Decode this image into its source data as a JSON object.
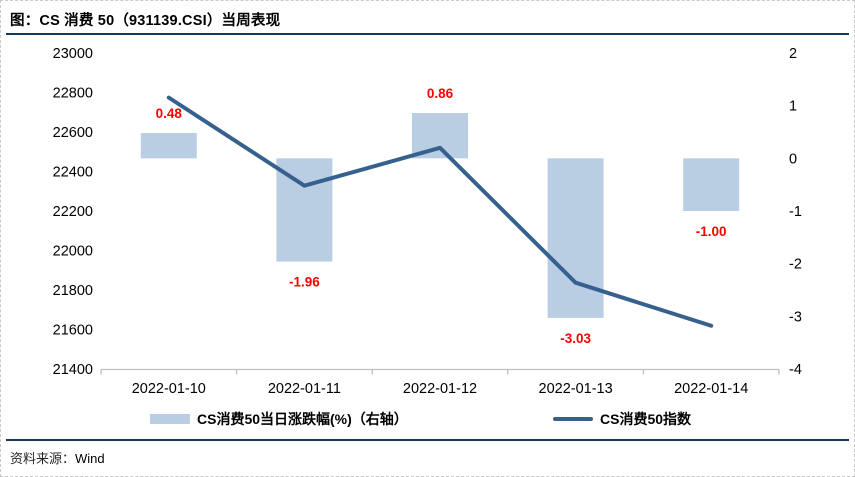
{
  "page": {
    "title": "图：CS 消费 50（931139.CSI）当周表现",
    "source_label": "资料来源：",
    "source_value": "Wind",
    "accent_rule_color": "#17365D"
  },
  "chart_data": {
    "type": "bar+line combo",
    "title": "CS 消费 50（931139.CSI）当周表现",
    "categories": [
      "2022-01-10",
      "2022-01-11",
      "2022-01-12",
      "2022-01-13",
      "2022-01-14"
    ],
    "series": [
      {
        "name": "CS消费50当日涨跌幅(%)（右轴）",
        "type": "bar",
        "axis": "right",
        "values": [
          0.48,
          -1.96,
          0.86,
          -3.03,
          -1.0
        ],
        "data_labels": [
          "0.48",
          "-1.96",
          "0.86",
          "-3.03",
          "-1.00"
        ],
        "color": "#B9CDE3",
        "data_label_color": "#FF0000"
      },
      {
        "name": "CS消费50指数",
        "type": "line",
        "axis": "left",
        "values": [
          22774,
          22328,
          22520,
          21837,
          21619
        ],
        "color": "#36618F"
      }
    ],
    "left_axis": {
      "min": 21400,
      "max": 23000,
      "step": 200,
      "ticks": [
        23000,
        22800,
        22600,
        22400,
        22200,
        22000,
        21800,
        21600,
        21400
      ]
    },
    "right_axis": {
      "min": -4,
      "max": 2,
      "step": 1,
      "ticks": [
        2,
        1,
        0,
        -1,
        -2,
        -3,
        -4
      ]
    },
    "grid": false,
    "legend_position": "bottom",
    "axis_line_color": "#BFBFBF"
  }
}
